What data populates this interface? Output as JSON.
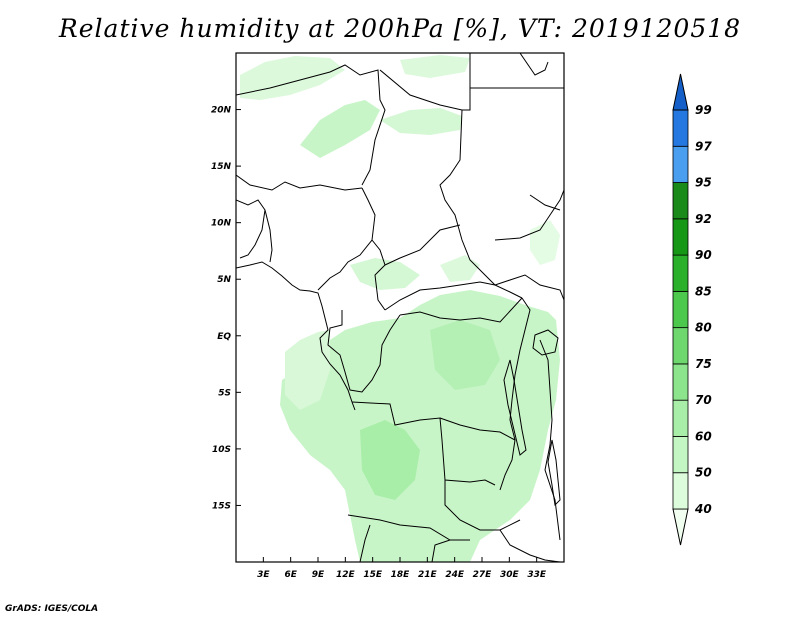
{
  "title": "Relative humidity at 200hPa [%], VT: 2019120518",
  "footer": "GrADS: IGES/COLA",
  "map": {
    "lon_range": [
      0,
      36
    ],
    "lat_range": [
      -20,
      25
    ],
    "x_ticks": [
      "3E",
      "6E",
      "9E",
      "12E",
      "15E",
      "18E",
      "21E",
      "24E",
      "27E",
      "30E",
      "33E"
    ],
    "y_ticks": [
      "20N",
      "15N",
      "10N",
      "5N",
      "EQ",
      "5S",
      "10S",
      "15S"
    ]
  },
  "colorbar": {
    "levels": [
      "40",
      "50",
      "60",
      "70",
      "75",
      "80",
      "85",
      "90",
      "92",
      "95",
      "97",
      "99"
    ],
    "colors": [
      "#f0fff0",
      "#dcfcdc",
      "#c4f6c4",
      "#a8eea8",
      "#8ce48c",
      "#6ed86e",
      "#4cc84c",
      "#2ab02a",
      "#169816",
      "#1a8a1a",
      "#4a9ef0",
      "#2478e0",
      "#1460c8"
    ]
  }
}
